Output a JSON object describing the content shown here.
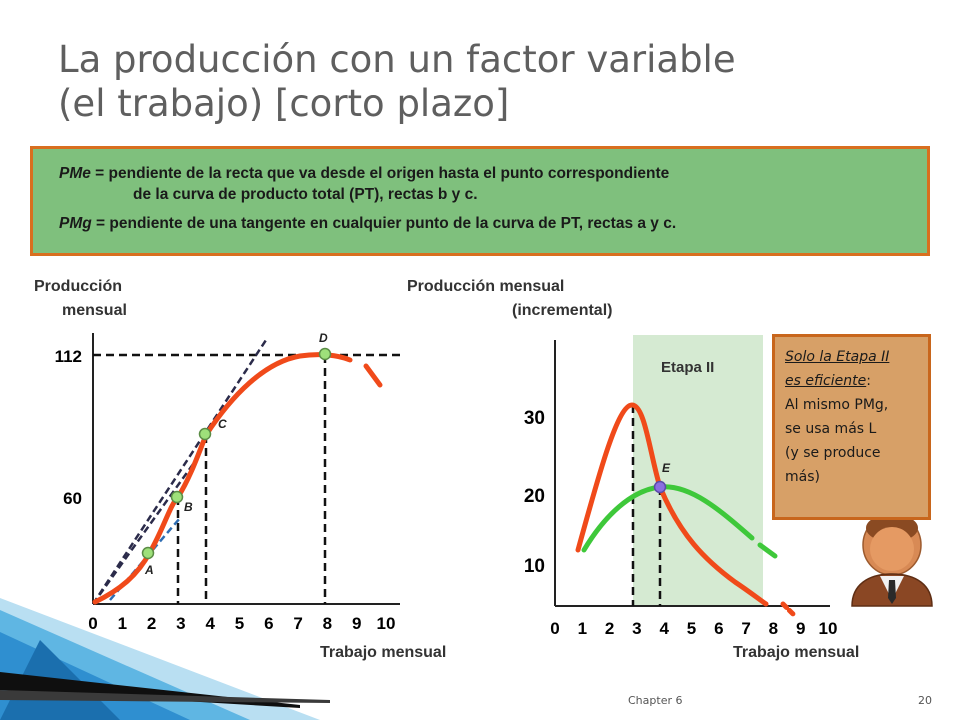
{
  "slide": {
    "title_line1": "La producción con un factor variable",
    "title_line2": "(el trabajo) [corto plazo]",
    "footer_chapter": "Chapter 6",
    "footer_page": "20"
  },
  "info": {
    "pme_term": "PMe",
    "pme_eq": " = pendiente de la recta que va desde el origen hasta el punto correspondiente",
    "pme_cont": "de la curva de producto total (PT), rectas b y c.",
    "pmg_term": "PMg",
    "pmg_eq": " = pendiente de una tangente en cualquier punto de la curva de PT, rectas a y c."
  },
  "note": {
    "line1": "Solo la Etapa II",
    "line2": "es eficiente",
    "line2_colon": ":",
    "line3": "Al mismo PMg,",
    "line4": "se usa más L",
    "line5": "(y se produce",
    "line6": "más)"
  },
  "colors": {
    "pt_curve": "#f04a1a",
    "pme_curve": "#3ec83a",
    "tangent_dashed": "#2b2b4a",
    "tangent_a": "#2e6db3",
    "point_fill": "#9ee07a",
    "stage_band": "#d5ead2",
    "point_e": "#8a6fe0",
    "box_green": "#7fc07d",
    "box_orange": "#d7a067",
    "border_orange": "#d86f1f"
  },
  "icon_person": "businessman-icon",
  "chart_data": [
    {
      "type": "line",
      "ylabel_line1": "Producción",
      "ylabel_line2": "mensual",
      "xlabel": "Trabajo mensual",
      "x_ticks": [
        "0",
        "1",
        "2",
        "3",
        "4",
        "5",
        "6",
        "7",
        "8",
        "9",
        "10"
      ],
      "y_ticks": [
        {
          "value": 60,
          "label": "60"
        },
        {
          "value": 112,
          "label": "112"
        }
      ],
      "xlim": [
        0,
        10
      ],
      "ylim": [
        0,
        120
      ],
      "series": [
        {
          "x": [
            0,
            1,
            2,
            3,
            4,
            5,
            6,
            7,
            8,
            9
          ],
          "y": [
            0,
            10,
            30,
            60,
            80,
            95,
            108,
            112,
            112,
            108
          ]
        }
      ],
      "points": [
        {
          "label": "A",
          "x": 2,
          "y": 20
        },
        {
          "label": "B",
          "x": 3,
          "y": 45
        },
        {
          "label": "C",
          "x": 4,
          "y": 70
        },
        {
          "label": "D",
          "x": 8,
          "y": 112
        }
      ]
    },
    {
      "type": "line",
      "ylabel_line1": "Producción mensual",
      "ylabel_line2": "(incremental)",
      "xlabel": "Trabajo mensual",
      "x_ticks": [
        "0",
        "1",
        "2",
        "3",
        "4",
        "5",
        "6",
        "7",
        "8",
        "9",
        "10"
      ],
      "y_ticks": [
        {
          "value": 10,
          "label": "10"
        },
        {
          "value": 20,
          "label": "20"
        },
        {
          "value": 30,
          "label": "30"
        }
      ],
      "xlim": [
        0,
        10
      ],
      "ylim": [
        0,
        35
      ],
      "stage_label": "Etapa II",
      "stage_range": [
        2,
        6.5
      ],
      "series": [
        {
          "x": [
            0,
            1,
            2,
            3,
            4,
            5,
            6,
            7,
            8
          ],
          "y": [
            7,
            18,
            26,
            20,
            15,
            10,
            5,
            2,
            0
          ]
        },
        {
          "x": [
            0,
            1,
            2,
            3,
            4,
            5,
            6,
            7,
            8
          ],
          "y": [
            7,
            15,
            18,
            17,
            15,
            13,
            10,
            7,
            4
          ]
        }
      ],
      "points": [
        {
          "label": "E",
          "x": 3,
          "y": 17
        }
      ]
    }
  ]
}
